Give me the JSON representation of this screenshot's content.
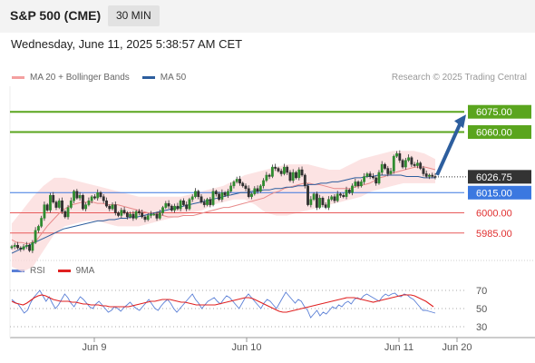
{
  "header": {
    "title": "S&P 500 (CME)",
    "interval": "30 MIN"
  },
  "datetime": "Wednesday, June 11, 2025 5:38:57 AM CET",
  "legend": {
    "items": [
      {
        "label": "MA 20 + Bollinger Bands",
        "color": "#f4a0a0"
      },
      {
        "label": "MA 50",
        "color": "#2d5e9e"
      }
    ]
  },
  "credit": "Research © 2025 Trading Central",
  "rsi_legend": {
    "items": [
      {
        "label": "RSI",
        "color": "#5a7fd6"
      },
      {
        "label": "9MA",
        "color": "#e02020"
      }
    ]
  },
  "chart_data": [
    {
      "type": "candlestick",
      "title": "",
      "price_range": [
        5966,
        6094
      ],
      "current_price": {
        "value": 6026.75,
        "label": "6026.75",
        "color": "#333333"
      },
      "levels": [
        {
          "value": 6075.0,
          "label": "6075.00",
          "style": "resistance",
          "color": "#5aa51e"
        },
        {
          "value": 6060.0,
          "label": "6060.00",
          "style": "resistance",
          "color": "#5aa51e"
        },
        {
          "value": 6015.0,
          "label": "6015.00",
          "style": "pivot",
          "color": "#3b78e0"
        },
        {
          "value": 6000.0,
          "label": "6000.00",
          "style": "support",
          "color": "#e85a5a"
        },
        {
          "value": 5985.0,
          "label": "5985.00",
          "style": "support",
          "color": "#e85a5a"
        }
      ],
      "x_ticks": [
        "Jun 9",
        "Jun 10",
        "Jun 11",
        "Jun 20"
      ],
      "projection": {
        "from": 6026.75,
        "to": 6075.0,
        "direction": "up",
        "color": "#2d5e9e"
      },
      "candles": [
        5975,
        5976,
        5974,
        5973,
        5975,
        5976,
        5972,
        5978,
        5987,
        5990,
        5996,
        6006,
        6002,
        6013,
        6008,
        6004,
        6009,
        6001,
        5997,
        6004,
        6009,
        6016,
        6011,
        6013,
        6003,
        6006,
        6009,
        6012,
        6011,
        6015,
        6012,
        6009,
        6005,
        6003,
        6006,
        6000,
        5998,
        6002,
        6000,
        5997,
        5999,
        5996,
        6001,
        6000,
        5997,
        5995,
        5998,
        5999,
        5999,
        5996,
        6000,
        6004,
        6007,
        6005,
        6002,
        6005,
        6003,
        6009,
        6006,
        6003,
        6010,
        6012,
        6016,
        6012,
        6008,
        6006,
        6010,
        6006,
        6016,
        6014,
        6010,
        6015,
        6013,
        6016,
        6020,
        6023,
        6025,
        6022,
        6020,
        6018,
        6012,
        6014,
        6018,
        6016,
        6020,
        6024,
        6028,
        6027,
        6034,
        6033,
        6031,
        6029,
        6034,
        6030,
        6024,
        6030,
        6026,
        6032,
        6028,
        6020,
        6006,
        6010,
        6014,
        6004,
        6011,
        6006,
        6004,
        6010,
        6012,
        6009,
        6014,
        6013,
        6012,
        6017,
        6015,
        6020,
        6023,
        6020,
        6023,
        6027,
        6029,
        6027,
        6026,
        6022,
        6030,
        6036,
        6033,
        6029,
        6031,
        6042,
        6044,
        6039,
        6034,
        6039,
        6041,
        6036,
        6035,
        6037,
        6033,
        6029,
        6027,
        6028,
        6027,
        6026.75
      ],
      "ma20": [
        5980,
        5978,
        5978,
        5977,
        5978,
        5980,
        5985,
        5990,
        5994,
        5998,
        6002,
        6004,
        6006,
        6007,
        6008,
        6008,
        6008,
        6007,
        6007,
        6006,
        6006,
        6006,
        6005,
        6004,
        6003,
        6002,
        6001,
        6000,
        6000,
        5999,
        5998,
        5997,
        5997,
        5997,
        5998,
        5998,
        5998,
        5999,
        6000,
        6001,
        6002,
        6003,
        6004,
        6004,
        6005,
        6006,
        6007,
        6008,
        6009,
        6010,
        6011,
        6013,
        6015,
        6016,
        6018,
        6019,
        6020,
        6021,
        6022,
        6022,
        6021,
        6021,
        6020,
        6019,
        6018,
        6018,
        6018,
        6018,
        6019,
        6020,
        6021,
        6022,
        6024,
        6026,
        6027,
        6029,
        6030,
        6031,
        6032,
        6033,
        6034,
        6034,
        6034,
        6033,
        6032
      ],
      "ma50": [
        5970,
        5972,
        5974,
        5976,
        5978,
        5980,
        5982,
        5984,
        5986,
        5988,
        5989,
        5990,
        5991,
        5992,
        5993,
        5994,
        5994,
        5995,
        5995,
        5996,
        5996,
        5997,
        5997,
        5998,
        5999,
        6000,
        6001,
        6002,
        6003,
        6004,
        6005,
        6006,
        6007,
        6008,
        6009,
        6010,
        6011,
        6012,
        6013,
        6014,
        6015,
        6015,
        6016,
        6016,
        6017,
        6017,
        6018,
        6018,
        6019,
        6019,
        6020,
        6020,
        6021,
        6021,
        6022,
        6022,
        6023,
        6023,
        6024,
        6025,
        6026,
        6026,
        6027,
        6027,
        6028,
        6028,
        6028,
        6028,
        6028,
        6027,
        6027,
        6027,
        6026,
        6026,
        6026
      ],
      "bb_upper": [
        5992,
        6002,
        6012,
        6020,
        6026,
        6026,
        6024,
        6022,
        6020,
        6018,
        6016,
        6014,
        6012,
        6012,
        6012,
        6012,
        6012,
        6014,
        6016,
        6018,
        6020,
        6024,
        6028,
        6030,
        6032,
        6034,
        6036,
        6036,
        6036,
        6034,
        6032,
        6032,
        6036,
        6040,
        6042,
        6044,
        6046,
        6046,
        6046,
        6044,
        6040
      ],
      "bb_lower": [
        5960,
        5956,
        5960,
        5972,
        5984,
        5990,
        5992,
        5994,
        5994,
        5992,
        5990,
        5990,
        5990,
        5992,
        5994,
        5996,
        5998,
        6000,
        6002,
        6006,
        6008,
        6010,
        6010,
        6006,
        6000,
        5998,
        5998,
        6000,
        6002,
        6004,
        6006,
        6008,
        6010,
        6012,
        6016,
        6018,
        6020,
        6022,
        6022,
        6022,
        6022
      ]
    },
    {
      "type": "line",
      "title": "RSI",
      "y_ticks": [
        70,
        50,
        30
      ],
      "ylim": [
        20,
        80
      ],
      "series": [
        {
          "name": "RSI",
          "color": "#5a7fd6",
          "values": [
            60,
            57,
            55,
            50,
            45,
            48,
            56,
            62,
            66,
            70,
            64,
            58,
            63,
            56,
            50,
            54,
            60,
            66,
            62,
            56,
            52,
            58,
            63,
            60,
            56,
            52,
            50,
            55,
            58,
            54,
            50,
            46,
            48,
            52,
            50,
            47,
            51,
            54,
            57,
            53,
            50,
            48,
            52,
            56,
            60,
            55,
            50,
            48,
            53,
            57,
            60,
            56,
            50,
            46,
            50,
            54,
            58,
            62,
            66,
            60,
            56,
            50,
            54,
            58,
            60,
            62,
            58,
            55,
            60,
            64,
            62,
            58,
            54,
            50,
            56,
            62,
            66,
            62,
            58,
            54,
            50,
            56,
            60,
            58,
            54,
            50,
            56,
            62,
            68,
            64,
            60,
            56,
            60,
            58,
            52,
            48,
            40,
            44,
            48,
            42,
            46,
            44,
            48,
            52,
            50,
            54,
            52,
            56,
            58,
            55,
            60,
            62,
            60,
            64,
            66,
            64,
            62,
            60,
            58,
            63,
            66,
            64,
            66,
            67,
            64,
            63,
            66,
            65,
            62,
            60,
            56,
            52,
            48,
            48,
            47,
            46,
            45
          ]
        },
        {
          "name": "9MA",
          "color": "#e02020",
          "values": [
            58,
            56,
            55,
            54,
            56,
            59,
            62,
            64,
            65,
            64,
            62,
            60,
            59,
            58,
            58,
            58,
            57,
            57,
            56,
            55,
            55,
            54,
            54,
            54,
            53,
            53,
            52,
            52,
            52,
            52,
            52,
            52,
            53,
            54,
            55,
            56,
            57,
            58,
            58,
            59,
            60,
            60,
            60,
            59,
            58,
            57,
            57,
            56,
            55,
            54,
            54,
            54,
            54,
            54,
            54,
            55,
            56,
            57,
            58,
            59,
            60,
            61,
            62,
            62,
            61,
            59,
            57,
            55,
            53,
            51,
            49,
            47,
            46,
            46,
            47,
            48,
            49,
            50,
            51,
            52,
            53,
            54,
            55,
            56,
            57,
            58,
            59,
            60,
            61,
            62,
            62,
            62,
            61,
            60,
            59,
            58,
            57,
            58,
            59,
            60,
            61,
            62,
            63,
            64,
            65,
            65,
            65,
            64,
            62,
            60,
            58,
            55,
            52
          ]
        }
      ]
    }
  ]
}
